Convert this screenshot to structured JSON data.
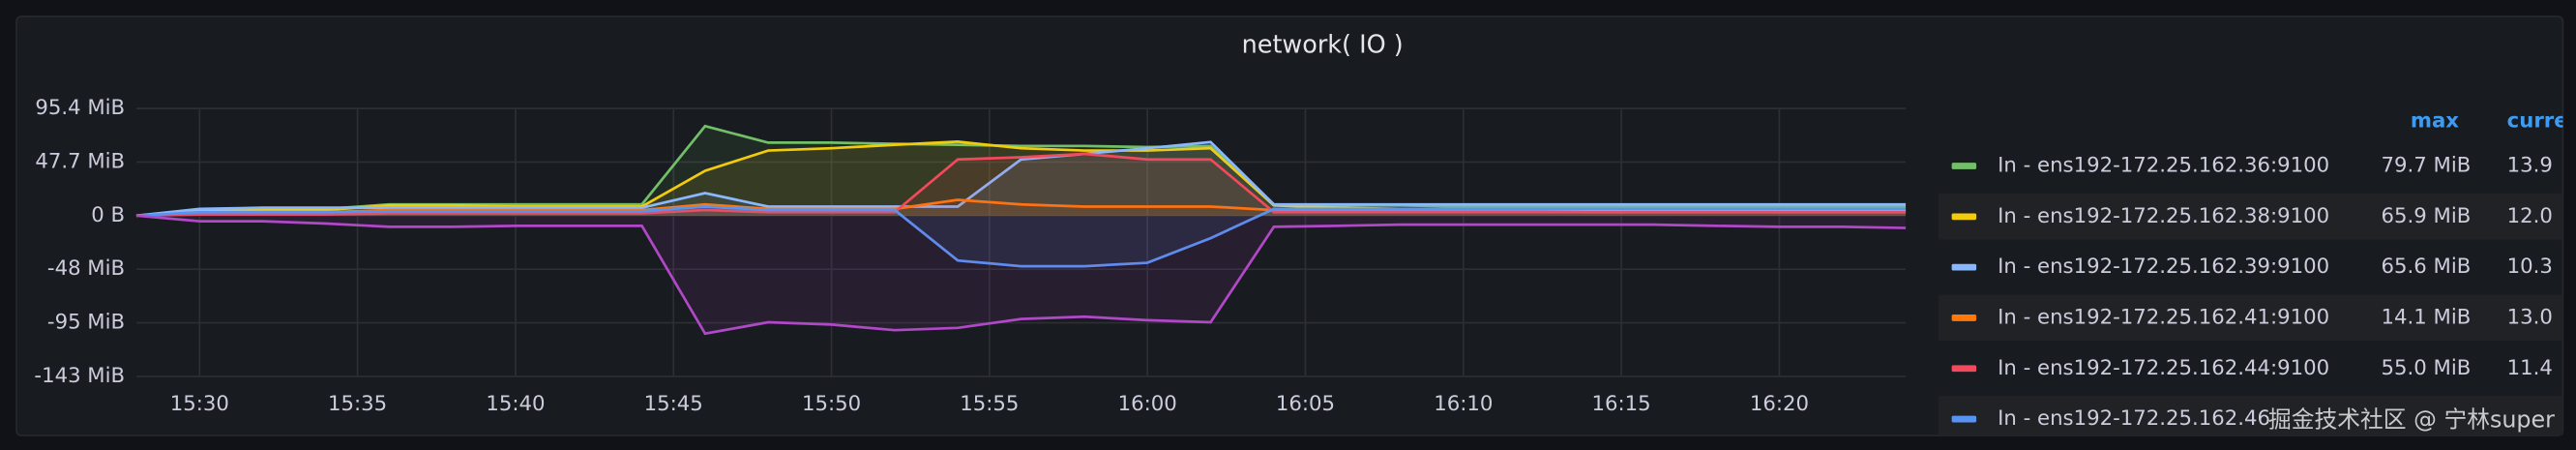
{
  "chart_data": {
    "type": "line",
    "title": "network( IO )",
    "x": [
      "15:28",
      "15:30",
      "15:32",
      "15:34",
      "15:36",
      "15:38",
      "15:40",
      "15:42",
      "15:44",
      "15:46",
      "15:48",
      "15:50",
      "15:52",
      "15:54",
      "15:56",
      "15:58",
      "16:00",
      "16:02",
      "16:04",
      "16:06",
      "16:08",
      "16:10",
      "16:12",
      "16:14",
      "16:16",
      "16:18",
      "16:20",
      "16:22",
      "16:24"
    ],
    "xlim": [
      "15:28",
      "16:24"
    ],
    "xticks": [
      "15:30",
      "15:35",
      "15:40",
      "15:45",
      "15:50",
      "15:55",
      "16:00",
      "16:05",
      "16:10",
      "16:15",
      "16:20"
    ],
    "ylim": [
      -143.1,
      95.4
    ],
    "yticks": [
      {
        "value": 95.4,
        "label": "95.4 MiB"
      },
      {
        "value": 47.7,
        "label": "47.7 MiB"
      },
      {
        "value": 0,
        "label": "0 B"
      },
      {
        "value": -47.7,
        "label": "-48 MiB"
      },
      {
        "value": -95.4,
        "label": "-95 MiB"
      },
      {
        "value": -143.1,
        "label": "-143 MiB"
      }
    ],
    "grid": true,
    "legend_headers": [
      "max",
      "curre"
    ],
    "series": [
      {
        "name": "In - ens192-172.25.162.36:9100",
        "color": "#73bf69",
        "legend_max": "79.7 MiB",
        "legend_current": "13.9",
        "values": [
          0,
          5,
          6,
          6,
          10,
          10,
          10,
          10,
          10,
          79.7,
          65,
          65,
          64,
          63,
          62,
          62,
          61,
          62,
          10,
          9,
          9,
          8,
          8,
          8,
          8,
          8,
          8,
          8,
          8
        ]
      },
      {
        "name": "In - ens192-172.25.162.38:9100",
        "color": "#f2cc0c",
        "legend_max": "65.9 MiB",
        "legend_current": "12.0",
        "values": [
          0,
          4,
          5,
          5,
          9,
          9,
          8,
          8,
          8,
          40,
          58,
          60,
          63,
          65.9,
          60,
          58,
          58,
          60,
          9,
          7,
          6,
          6,
          6,
          5,
          5,
          5,
          5,
          5,
          5
        ]
      },
      {
        "name": "In - ens192-172.25.162.39:9100",
        "color": "#8ab8ff",
        "legend_max": "65.6 MiB",
        "legend_current": "10.3",
        "values": [
          0,
          6,
          7,
          7,
          7,
          7,
          7,
          7,
          7,
          20,
          8,
          8,
          8,
          8,
          50,
          55,
          60,
          65.6,
          10,
          10,
          10,
          10,
          10,
          10,
          10,
          10,
          10,
          10,
          10
        ]
      },
      {
        "name": "In - ens192-172.25.162.41:9100",
        "color": "#ff780a",
        "legend_max": "14.1 MiB",
        "legend_current": "13.0",
        "values": [
          0,
          2,
          3,
          3,
          5,
          5,
          5,
          5,
          5,
          10,
          6,
          6,
          6,
          14.1,
          10,
          8,
          8,
          8,
          5,
          4,
          4,
          4,
          4,
          3,
          3,
          3,
          3,
          3,
          3
        ]
      },
      {
        "name": "In - ens192-172.25.162.44:9100",
        "color": "#f2495c",
        "legend_max": "55.0 MiB",
        "legend_current": "11.4",
        "values": [
          0,
          1,
          1,
          1,
          2,
          2,
          2,
          2,
          2,
          5,
          3,
          3,
          3,
          50,
          52,
          55,
          50,
          50,
          3,
          3,
          3,
          3,
          3,
          3,
          3,
          3,
          3,
          3,
          3
        ]
      },
      {
        "name": "In - ens192-172.25.162.46",
        "color": "#5794f2",
        "values": [
          0,
          3,
          3,
          3,
          4,
          4,
          4,
          4,
          4,
          8,
          5,
          5,
          5,
          -40,
          -45,
          -45,
          -42,
          -20,
          6,
          6,
          6,
          6,
          6,
          6,
          6,
          6,
          6,
          6,
          6
        ]
      },
      {
        "color": "#b048c8",
        "values": [
          0,
          -5,
          -5,
          -7,
          -10,
          -10,
          -9,
          -9,
          -9,
          -105,
          -95,
          -97,
          -102,
          -100,
          -92,
          -90,
          -93,
          -95,
          -10,
          -9,
          -8,
          -8,
          -8,
          -8,
          -8,
          -9,
          -10,
          -10,
          -11
        ]
      }
    ],
    "watermark": "掘金技术社区 @ 宁林super"
  }
}
